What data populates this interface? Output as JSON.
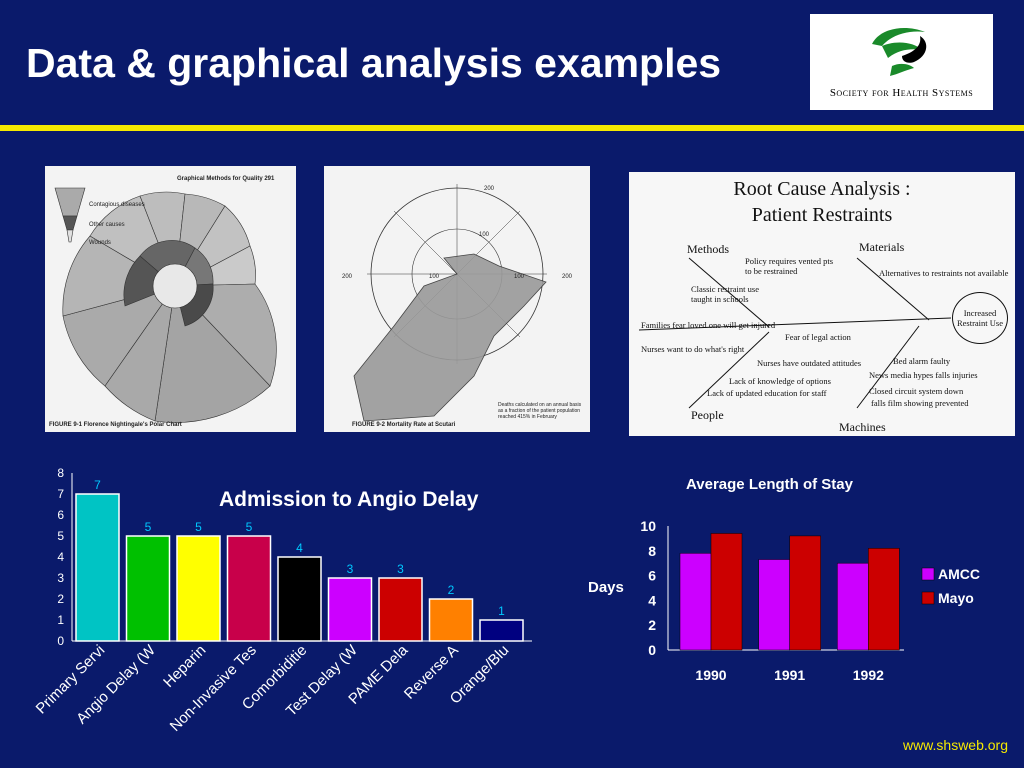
{
  "slide": {
    "title": "Data & graphical analysis examples",
    "footer": "www.shsweb.org",
    "background_color": "#0a1a6b",
    "accent_color": "#f6e900"
  },
  "logo": {
    "text": "Society for Health Systems",
    "colors": [
      "#1a8a2a",
      "#000000"
    ]
  },
  "image_panels": {
    "polar_chart": {
      "header": "Graphical Methods for Quality   291",
      "legend": [
        "Contagious diseases",
        "Other causes",
        "Wounds"
      ],
      "caption": "FIGURE 9-1  Florence Nightingale's Polar Chart"
    },
    "mortality_chart": {
      "caption": "FIGURE 9-2  Mortality Rate at Scutari",
      "note": "Deaths calculated on an annual basis as a fraction of the patient population reached 415% in February"
    },
    "root_cause": {
      "title_line1": "Root Cause Analysis :",
      "title_line2": "Patient Restraints",
      "categories": {
        "methods": "Methods",
        "materials": "Materials",
        "people": "People",
        "machines": "Machines"
      },
      "effect": "Increased Restraint Use",
      "causes": [
        "Policy requires vented pts to be restrained",
        "Alternatives to restraints not available",
        "Classic restraint use taught in schools",
        "Families fear loved one will get injured",
        "Fear of legal action",
        "Nurses want to do what's right",
        "Nurses have outdated attitudes",
        "Bed alarm faulty",
        "News media hypes falls injuries",
        "Lack of knowledge of options",
        "Lack of updated education for staff",
        "Closed circuit system down",
        "falls film showing prevented"
      ]
    }
  },
  "chart_data": [
    {
      "type": "bar",
      "title": "Admission to Angio Delay",
      "categories": [
        "Primary Servi",
        "Angio Delay (W",
        "Heparin",
        "Non-Invasive Tes",
        "Comorbiditie",
        "Test Delay (W",
        "PAME Dela",
        "Reverse A",
        "Orange/Blu"
      ],
      "values": [
        7,
        5,
        5,
        5,
        4,
        3,
        3,
        2,
        1
      ],
      "colors": [
        "#00c4c4",
        "#00c000",
        "#ffff00",
        "#c8004a",
        "#000000",
        "#cc00ff",
        "#cc0000",
        "#ff8000",
        "#000080"
      ],
      "ylim": [
        0,
        8
      ],
      "yticks": [
        "0",
        "1",
        "2",
        "3",
        "4",
        "5",
        "6",
        "7",
        "8"
      ],
      "value_labels": [
        "7",
        "5",
        "5",
        "5",
        "4",
        "3",
        "3",
        "2",
        "1"
      ]
    },
    {
      "type": "bar",
      "title": "Average Length of Stay",
      "ylabel": "Days",
      "categories": [
        "1990",
        "1991",
        "1992"
      ],
      "series": [
        {
          "name": "AMCC",
          "values": [
            7.8,
            7.3,
            7.0
          ],
          "color": "#cc00ff"
        },
        {
          "name": "Mayo",
          "values": [
            9.4,
            9.2,
            8.2
          ],
          "color": "#cc0000"
        }
      ],
      "ylim": [
        0,
        10
      ],
      "yticks": [
        "0",
        "2",
        "4",
        "6",
        "8",
        "10"
      ],
      "legend_position": "right"
    }
  ]
}
